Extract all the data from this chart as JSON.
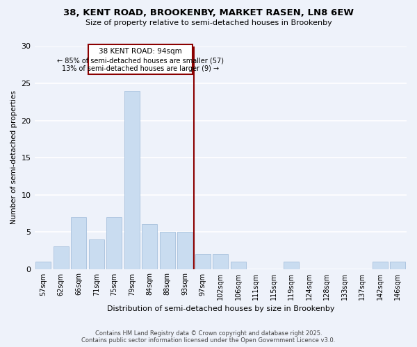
{
  "title1": "38, KENT ROAD, BROOKENBY, MARKET RASEN, LN8 6EW",
  "title2": "Size of property relative to semi-detached houses in Brookenby",
  "xlabel": "Distribution of semi-detached houses by size in Brookenby",
  "ylabel": "Number of semi-detached properties",
  "categories": [
    "57sqm",
    "62sqm",
    "66sqm",
    "71sqm",
    "75sqm",
    "79sqm",
    "84sqm",
    "88sqm",
    "93sqm",
    "97sqm",
    "102sqm",
    "106sqm",
    "111sqm",
    "115sqm",
    "119sqm",
    "124sqm",
    "128sqm",
    "133sqm",
    "137sqm",
    "142sqm",
    "146sqm"
  ],
  "values": [
    1,
    3,
    7,
    4,
    7,
    24,
    6,
    5,
    5,
    2,
    2,
    1,
    0,
    0,
    1,
    0,
    0,
    0,
    0,
    1,
    1
  ],
  "bar_color": "#c9dcf0",
  "bar_edge_color": "#aec6e0",
  "vline_color": "#8b0000",
  "annotation_title": "38 KENT ROAD: 94sqm",
  "annotation_line1": "← 85% of semi-detached houses are smaller (57)",
  "annotation_line2": "13% of semi-detached houses are larger (9) →",
  "annotation_box_color": "#8b0000",
  "ylim": [
    0,
    30
  ],
  "yticks": [
    0,
    5,
    10,
    15,
    20,
    25,
    30
  ],
  "background_color": "#eef2fa",
  "grid_color": "#ffffff",
  "footer1": "Contains HM Land Registry data © Crown copyright and database right 2025.",
  "footer2": "Contains public sector information licensed under the Open Government Licence v3.0."
}
